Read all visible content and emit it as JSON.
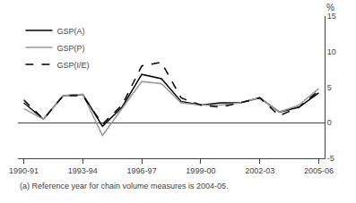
{
  "chart_data": {
    "type": "line",
    "categories": [
      "1990-91",
      null,
      null,
      "1993-94",
      null,
      null,
      "1996-97",
      null,
      null,
      "1999-00",
      null,
      null,
      "2002-03",
      null,
      null,
      "2005-06"
    ],
    "series": [
      {
        "name": "GSP(A)",
        "color": "#000000",
        "line_style": "solid",
        "values": [
          2.8,
          0.5,
          3.8,
          4.0,
          -0.5,
          2.2,
          6.8,
          6.2,
          3.0,
          2.5,
          2.8,
          2.8,
          3.5,
          1.5,
          2.2,
          4.2
        ]
      },
      {
        "name": "GSP(P)",
        "color": "#999999",
        "line_style": "solid",
        "values": [
          2.0,
          0.5,
          3.8,
          4.0,
          -1.8,
          2.0,
          5.8,
          5.5,
          2.8,
          2.5,
          2.5,
          2.8,
          3.5,
          1.5,
          2.5,
          4.8
        ]
      },
      {
        "name": "GSP(I/E)",
        "color": "#000000",
        "line_style": "dashed",
        "values": [
          3.2,
          0.5,
          3.8,
          3.8,
          -0.2,
          2.5,
          8.0,
          8.5,
          3.5,
          2.5,
          2.2,
          2.8,
          3.5,
          1.0,
          2.2,
          4.5
        ]
      }
    ],
    "ylim": [
      -5,
      15
    ],
    "yticks": [
      -5,
      0,
      5,
      10,
      15
    ],
    "ylabel": "%",
    "annotations": [
      "(a) Reference year for chain volume measures is 2004-05."
    ],
    "grid": false,
    "legend": "upper left"
  }
}
